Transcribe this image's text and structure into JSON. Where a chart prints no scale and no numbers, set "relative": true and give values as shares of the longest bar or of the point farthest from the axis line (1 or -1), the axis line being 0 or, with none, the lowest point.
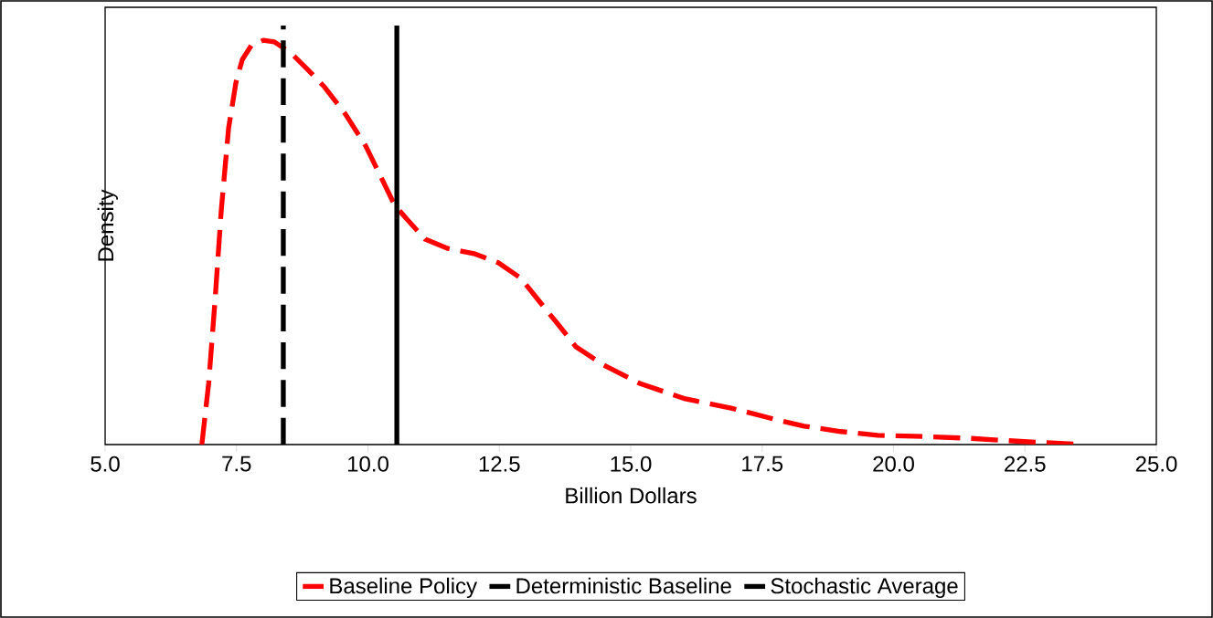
{
  "chart_data": {
    "type": "line",
    "relative": true,
    "xlabel": "Billion Dollars",
    "ylabel": "Density",
    "xlim": [
      5,
      25
    ],
    "xticks": [
      {
        "value": 5,
        "label": "5.0"
      },
      {
        "value": 7.5,
        "label": "7.5"
      },
      {
        "value": 10,
        "label": "10.0"
      },
      {
        "value": 12.5,
        "label": "12.5"
      },
      {
        "value": 15,
        "label": "15.0"
      },
      {
        "value": 17.5,
        "label": "17.5"
      },
      {
        "value": 20,
        "label": "20.0"
      },
      {
        "value": 22.5,
        "label": "22.5"
      },
      {
        "value": 25,
        "label": "25.0"
      }
    ],
    "legend": "bottom",
    "grid": false,
    "marker": "none",
    "series": [
      {
        "name": "Baseline Policy",
        "color": "#ff0000",
        "line_style": "dashed",
        "x": [
          6.84,
          6.97,
          7.09,
          7.21,
          7.35,
          7.49,
          7.61,
          7.78,
          8.01,
          8.22,
          8.53,
          8.83,
          9.17,
          9.57,
          9.96,
          10.3,
          10.51,
          10.74,
          11.09,
          11.52,
          12.04,
          12.48,
          12.91,
          13.26,
          13.61,
          13.96,
          14.48,
          15.17,
          16.04,
          16.91,
          17.78,
          18.3,
          19.0,
          19.7,
          20.39,
          21.43,
          22.48,
          23.61
        ],
        "values": [
          0,
          0.146,
          0.342,
          0.56,
          0.756,
          0.865,
          0.919,
          0.952,
          0.965,
          0.961,
          0.935,
          0.898,
          0.854,
          0.789,
          0.712,
          0.625,
          0.571,
          0.538,
          0.49,
          0.468,
          0.455,
          0.434,
          0.397,
          0.342,
          0.288,
          0.233,
          0.19,
          0.146,
          0.109,
          0.087,
          0.059,
          0.044,
          0.031,
          0.022,
          0.02,
          0.015,
          0.007,
          0
        ]
      },
      {
        "name": "Deterministic Baseline",
        "color": "#000000",
        "line_style": "dashed",
        "x": [
          8.39,
          8.39
        ],
        "values": [
          0,
          1
        ]
      },
      {
        "name": "Stochastic Average",
        "color": "#000000",
        "line_style": "solid",
        "x": [
          10.55,
          10.55
        ],
        "values": [
          0,
          1
        ]
      }
    ]
  }
}
